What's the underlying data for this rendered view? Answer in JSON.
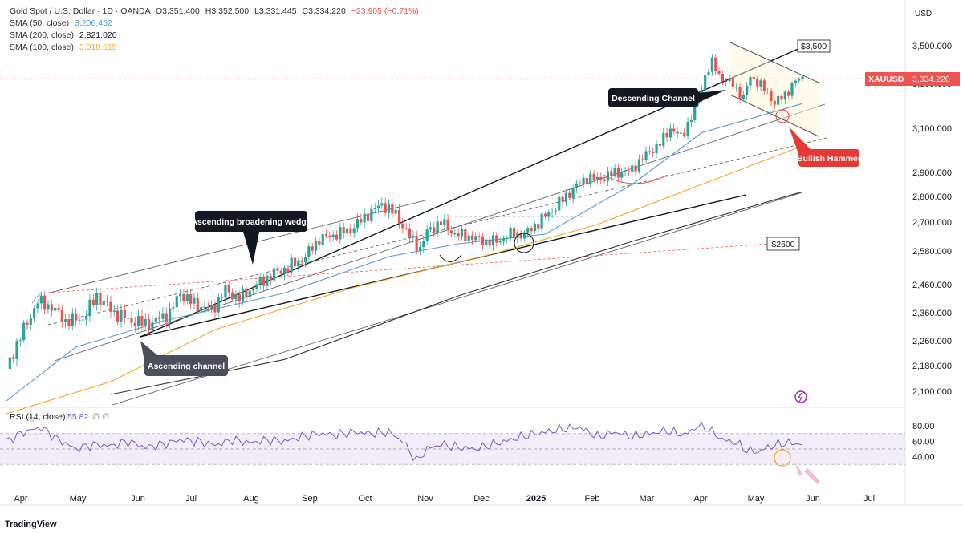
{
  "header": {
    "symbol_line": "Gold Spot / U.S. Dollar · 1D · OANDA",
    "open": "O3,351.400",
    "high": "H3,352.500",
    "low": "L3,331.445",
    "close": "C3,334.220",
    "change": "−23.905 (−0.71%)",
    "sma50_label": "SMA (50, close)",
    "sma50_value": "3,206.452",
    "sma200_label": "SMA (200, close)",
    "sma200_value": "2,821.020",
    "sma100_label": "SMA (100, close)",
    "sma100_value": "3,018.615"
  },
  "colors": {
    "up": "#26a69a",
    "down": "#ef5350",
    "sma50": "#5b9bd5",
    "sma100": "#f5a623",
    "sma200": "#333333",
    "rsi": "#7e57c2",
    "price_tag": "#ef5350",
    "hammer_tag": "#e53935"
  },
  "currency": "USD",
  "price_tag": {
    "symbol": "XAUUSD",
    "value": "3,334.220"
  },
  "annotations": {
    "descending_channel": "Descending Channel",
    "ascending_wedge": "Ascending broadening wedge",
    "ascending_channel": "Ascending channel",
    "bullish_hammer": "Bullish Hammer",
    "level_3500": "$3,500",
    "level_2600": "$2600"
  },
  "rsi_header": {
    "label": "RSI (14, close)",
    "value": "55.82",
    "extra": "∅ ∅"
  },
  "branding": "TradingView",
  "chart_data": {
    "type": "candlestick",
    "y_axis_ticks": [
      3500,
      3300,
      3100,
      2900,
      2800,
      2700,
      2580,
      2460,
      2360,
      2260,
      2180,
      2100
    ],
    "y_axis_tick_labels": [
      "3,500.000",
      "3,300.000",
      "3,100.000",
      "2,900.000",
      "2,800.000",
      "2,700.000",
      "2,580.000",
      "2,460.000",
      "2,360.000",
      "2,260.000",
      "2,180.000",
      "2,100.000"
    ],
    "x_axis_labels": [
      "Apr",
      "May",
      "Jun",
      "Jul",
      "Aug",
      "Sep",
      "Oct",
      "Nov",
      "Dec",
      "2025",
      "Feb",
      "Mar",
      "Apr",
      "May",
      "Jun",
      "Jul"
    ],
    "price_path": [
      [
        0,
        2170
      ],
      [
        3,
        2250
      ],
      [
        9,
        2400
      ],
      [
        13,
        2380
      ],
      [
        17,
        2330
      ],
      [
        22,
        2340
      ],
      [
        26,
        2420
      ],
      [
        31,
        2360
      ],
      [
        36,
        2330
      ],
      [
        41,
        2320
      ],
      [
        47,
        2360
      ],
      [
        50,
        2430
      ],
      [
        54,
        2390
      ],
      [
        59,
        2370
      ],
      [
        63,
        2440
      ],
      [
        67,
        2410
      ],
      [
        72,
        2460
      ],
      [
        77,
        2500
      ],
      [
        81,
        2520
      ],
      [
        86,
        2560
      ],
      [
        90,
        2630
      ],
      [
        95,
        2650
      ],
      [
        99,
        2670
      ],
      [
        104,
        2730
      ],
      [
        108,
        2770
      ],
      [
        112,
        2730
      ],
      [
        116,
        2640
      ],
      [
        119,
        2590
      ],
      [
        121,
        2660
      ],
      [
        125,
        2700
      ],
      [
        129,
        2650
      ],
      [
        133,
        2640
      ],
      [
        138,
        2620
      ],
      [
        141,
        2620
      ],
      [
        145,
        2650
      ],
      [
        149,
        2650
      ],
      [
        154,
        2710
      ],
      [
        158,
        2760
      ],
      [
        163,
        2830
      ],
      [
        167,
        2880
      ],
      [
        170,
        2870
      ],
      [
        175,
        2900
      ],
      [
        179,
        2900
      ],
      [
        184,
        2980
      ],
      [
        188,
        3030
      ],
      [
        191,
        3100
      ],
      [
        194,
        3060
      ],
      [
        197,
        3150
      ],
      [
        199,
        3230
      ],
      [
        201,
        3340
      ],
      [
        203,
        3410
      ],
      [
        206,
        3320
      ],
      [
        209,
        3300
      ],
      [
        212,
        3230
      ],
      [
        214,
        3340
      ],
      [
        217,
        3290
      ],
      [
        219,
        3260
      ],
      [
        221,
        3210
      ],
      [
        224,
        3250
      ],
      [
        227,
        3310
      ],
      [
        229,
        3334
      ]
    ],
    "sma50": [
      [
        0,
        2070
      ],
      [
        20,
        2240
      ],
      [
        45,
        2330
      ],
      [
        80,
        2430
      ],
      [
        110,
        2560
      ],
      [
        130,
        2610
      ],
      [
        155,
        2650
      ],
      [
        180,
        2850
      ],
      [
        200,
        3080
      ],
      [
        229,
        3210
      ]
    ],
    "sma100": [
      [
        0,
        2030
      ],
      [
        30,
        2130
      ],
      [
        60,
        2300
      ],
      [
        100,
        2450
      ],
      [
        140,
        2570
      ],
      [
        170,
        2690
      ],
      [
        200,
        2850
      ],
      [
        229,
        3020
      ]
    ],
    "sma200": [
      [
        30,
        2090
      ],
      [
        80,
        2200
      ],
      [
        130,
        2420
      ],
      [
        180,
        2620
      ],
      [
        229,
        2820
      ]
    ],
    "rsi": {
      "range": [
        0,
        100
      ],
      "ticks": [
        80,
        60,
        40
      ],
      "overbought": 70,
      "middle": 50,
      "oversold": 30,
      "last": 55.82,
      "path": [
        [
          0,
          60
        ],
        [
          5,
          72
        ],
        [
          10,
          78
        ],
        [
          15,
          62
        ],
        [
          20,
          50
        ],
        [
          25,
          56
        ],
        [
          30,
          54
        ],
        [
          35,
          60
        ],
        [
          40,
          52
        ],
        [
          45,
          56
        ],
        [
          50,
          62
        ],
        [
          55,
          60
        ],
        [
          60,
          55
        ],
        [
          65,
          62
        ],
        [
          70,
          58
        ],
        [
          75,
          62
        ],
        [
          80,
          60
        ],
        [
          85,
          66
        ],
        [
          90,
          70
        ],
        [
          95,
          68
        ],
        [
          100,
          72
        ],
        [
          105,
          70
        ],
        [
          110,
          72
        ],
        [
          114,
          60
        ],
        [
          118,
          34
        ],
        [
          121,
          50
        ],
        [
          125,
          56
        ],
        [
          130,
          52
        ],
        [
          135,
          50
        ],
        [
          140,
          56
        ],
        [
          145,
          62
        ],
        [
          150,
          68
        ],
        [
          155,
          72
        ],
        [
          160,
          76
        ],
        [
          165,
          78
        ],
        [
          170,
          66
        ],
        [
          175,
          72
        ],
        [
          180,
          66
        ],
        [
          185,
          70
        ],
        [
          190,
          74
        ],
        [
          195,
          68
        ],
        [
          199,
          80
        ],
        [
          202,
          76
        ],
        [
          206,
          62
        ],
        [
          210,
          58
        ],
        [
          213,
          48
        ],
        [
          216,
          46
        ],
        [
          219,
          52
        ],
        [
          222,
          56
        ],
        [
          225,
          58
        ],
        [
          229,
          56
        ]
      ]
    }
  }
}
